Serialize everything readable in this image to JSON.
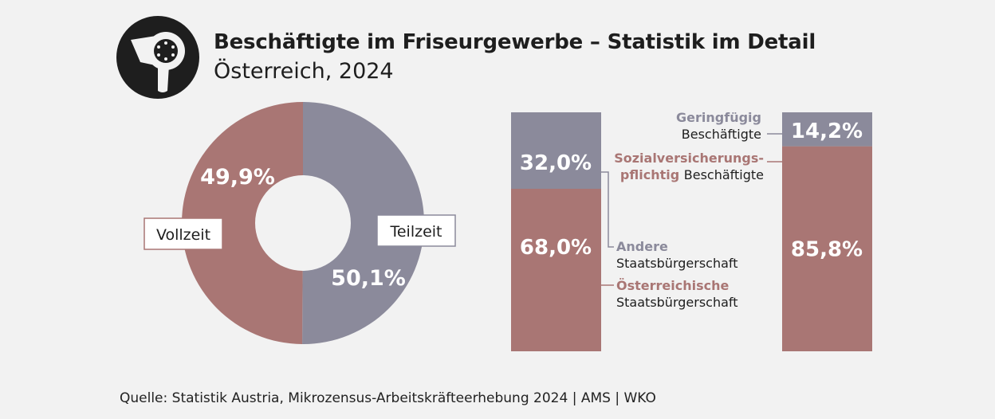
{
  "header": {
    "title": "Beschäftigte im Friseurgewerbe – Statistik im Detail",
    "subtitle": "Österreich, 2024",
    "logo_icon": "hair-dryer-icon"
  },
  "colors": {
    "rose": "#a97674",
    "grey": "#8b8a9b",
    "background": "#f2f2f2",
    "dark": "#1e1e1e"
  },
  "chart_data": [
    {
      "type": "pie",
      "labels": [
        "Vollzeit",
        "Teilzeit"
      ],
      "values": [
        49.9,
        50.1
      ],
      "value_labels": [
        "49,9%",
        "50,1%"
      ],
      "colors": [
        "#a97674",
        "#8b8a9b"
      ],
      "donut": true
    },
    {
      "type": "bar",
      "stacked": true,
      "segments": [
        {
          "name_lines": [
            "Österreichische",
            "Staatsbürgerschaft"
          ],
          "value": 68.0,
          "label": "68,0%",
          "color": "#a97674"
        },
        {
          "name_lines": [
            "Andere",
            "Staatsbürgerschaft"
          ],
          "value": 32.0,
          "label": "32,0%",
          "color": "#8b8a9b"
        }
      ]
    },
    {
      "type": "bar",
      "stacked": true,
      "segments": [
        {
          "name_lines": [
            "Sozialversicherungs-",
            "pflichtig",
            "Beschäftigte"
          ],
          "value": 85.8,
          "label": "85,8%",
          "color": "#a97674"
        },
        {
          "name_lines": [
            "Geringfügig",
            "Beschäftigte"
          ],
          "value": 14.2,
          "label": "14,2%",
          "color": "#8b8a9b"
        }
      ]
    }
  ],
  "footer": {
    "source": "Quelle: Statistik Austria, Mikrozensus-Arbeitskräfteerhebung 2024 | AMS | WKO"
  }
}
